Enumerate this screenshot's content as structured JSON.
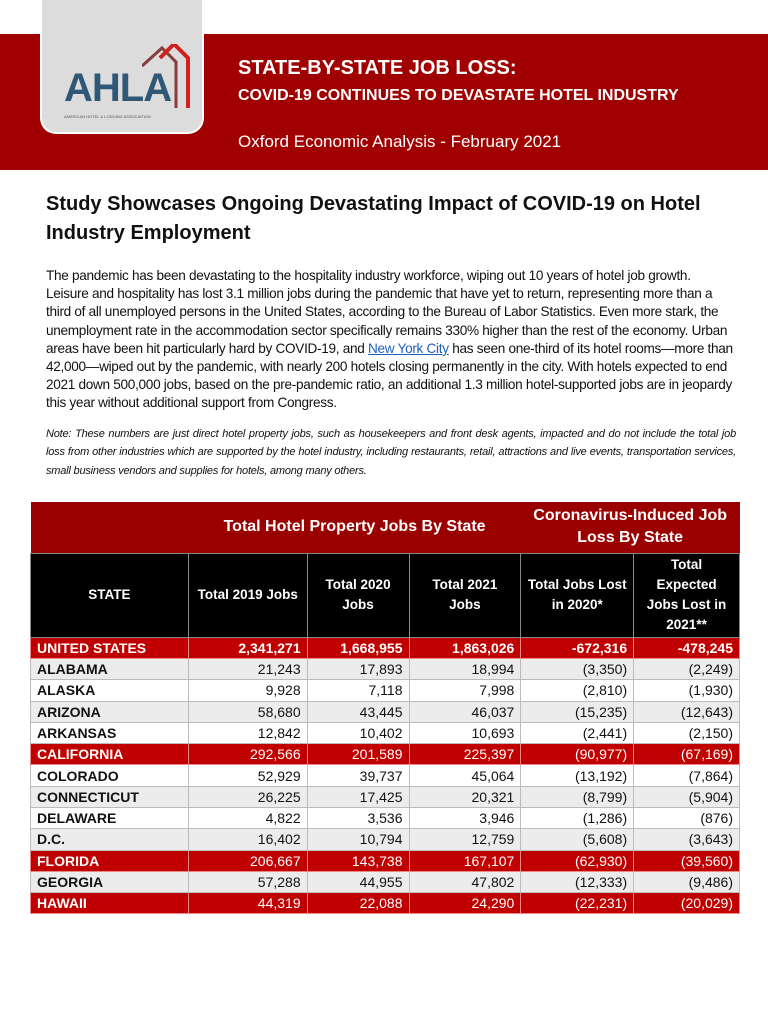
{
  "header": {
    "logo": "AHLA",
    "logo_sub": "AMERICAN HOTEL & LODGING ASSOCIATION",
    "title": "STATE-BY-STATE JOB LOSS:",
    "subtitle": "COVID-19 CONTINUES TO DEVASTATE HOTEL INDUSTRY",
    "source": "Oxford Economic Analysis - February 2021"
  },
  "headline": "Study Showcases Ongoing Devastating Impact of COVID-19 on Hotel Industry Employment",
  "body": {
    "before_link": "The pandemic has been devastating to the hospitality industry workforce, wiping out 10 years of hotel job growth. Leisure and hospitality has lost 3.1 million jobs during the pandemic that have yet to return, representing more than a third of all unemployed persons in the United States, according to the Bureau of Labor Statistics. Even more stark, the unemployment rate in the accommodation sector specifically remains 330% higher than the rest of the economy. Urban areas have been hit particularly hard by COVID-19, and ",
    "link": "New York City",
    "after_link": " has seen one-third of its hotel rooms—more than 42,000—wiped out by the pandemic, with nearly 200 hotels closing permanently in the city. With hotels expected to end 2021 down 500,000 jobs, based on the pre-pandemic ratio, an additional 1.3 million hotel-supported jobs are in jeopardy this year without additional support from Congress."
  },
  "note": "Note: These numbers are just direct hotel property jobs, such as housekeepers and front desk agents, impacted and do not include the total job loss from other industries which are supported by the hotel industry, including restaurants, retail, attractions and live events, transportation services, small business vendors and supplies for hotels, among many others.",
  "table": {
    "group1": "Total Hotel Property Jobs By State",
    "group2": "Coronavirus-Induced Job Loss By State",
    "columns": [
      "STATE",
      "Total 2019 Jobs",
      "Total 2020 Jobs",
      "Total 2021 Jobs",
      "Total Jobs Lost in 2020*",
      "Total Expected Jobs Lost in 2021**"
    ],
    "rows": [
      [
        "UNITED STATES",
        "2,341,271",
        "1,668,955",
        "1,863,026",
        "-672,316",
        "-478,245"
      ],
      [
        "ALABAMA",
        "21,243",
        "17,893",
        "18,994",
        "(3,350)",
        "(2,249)"
      ],
      [
        "ALASKA",
        "9,928",
        "7,118",
        "7,998",
        "(2,810)",
        "(1,930)"
      ],
      [
        "ARIZONA",
        "58,680",
        "43,445",
        "46,037",
        "(15,235)",
        "(12,643)"
      ],
      [
        "ARKANSAS",
        "12,842",
        "10,402",
        "10,693",
        "(2,441)",
        "(2,150)"
      ],
      [
        "CALIFORNIA",
        "292,566",
        "201,589",
        "225,397",
        "(90,977)",
        "(67,169)"
      ],
      [
        "COLORADO",
        "52,929",
        "39,737",
        "45,064",
        "(13,192)",
        "(7,864)"
      ],
      [
        "CONNECTICUT",
        "26,225",
        "17,425",
        "20,321",
        "(8,799)",
        "(5,904)"
      ],
      [
        "DELAWARE",
        "4,822",
        "3,536",
        "3,946",
        "(1,286)",
        "(876)"
      ],
      [
        "D.C.",
        "16,402",
        "10,794",
        "12,759",
        "(5,608)",
        "(3,643)"
      ],
      [
        "FLORIDA",
        "206,667",
        "143,738",
        "167,107",
        "(62,930)",
        "(39,560)"
      ],
      [
        "GEORGIA",
        "57,288",
        "44,955",
        "47,802",
        "(12,333)",
        "(9,486)"
      ],
      [
        "HAWAII",
        "44,319",
        "22,088",
        "24,290",
        "(22,231)",
        "(20,029)"
      ]
    ],
    "highlight_rows": [
      "UNITED STATES",
      "CALIFORNIA",
      "FLORIDA",
      "HAWAII"
    ],
    "colors": {
      "brand_red": "#a00000",
      "highlight": "#c00000",
      "header_black": "#000000",
      "logo_blue": "#2f5877"
    }
  }
}
